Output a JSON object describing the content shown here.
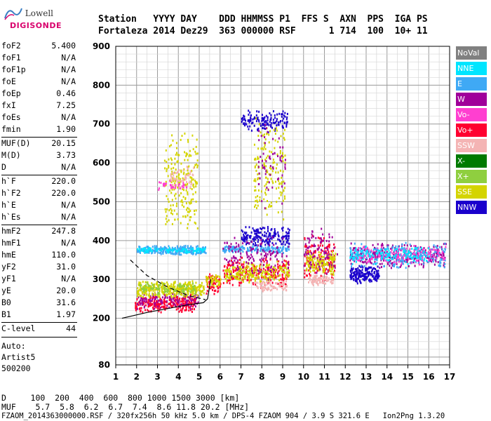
{
  "logo": {
    "line1": "Lowell",
    "line2": "DIGISONDE"
  },
  "header": {
    "labels": "Station   YYYY DAY    DDD HHMMSS P1  FFS S  AXN  PPS  IGA PS",
    "values": "Fortaleza 2014 Dez29  363 000000 RSF      1 714  100  10+ 11"
  },
  "params": [
    {
      "k": "foF2",
      "v": "5.400"
    },
    {
      "k": "foF1",
      "v": "N/A"
    },
    {
      "k": "foF1p",
      "v": "N/A"
    },
    {
      "k": "foE",
      "v": "N/A"
    },
    {
      "k": "foEp",
      "v": "0.46"
    },
    {
      "k": "fxI",
      "v": "7.25"
    },
    {
      "k": "foEs",
      "v": "N/A"
    },
    {
      "k": "fmin",
      "v": "1.90"
    },
    {
      "k": "MUF(D)",
      "v": "20.15"
    },
    {
      "k": "M(D)",
      "v": "3.73"
    },
    {
      "k": "D",
      "v": "N/A"
    },
    {
      "k": "h`F",
      "v": "220.0"
    },
    {
      "k": "h`F2",
      "v": "220.0"
    },
    {
      "k": "h`E",
      "v": "N/A"
    },
    {
      "k": "h`Es",
      "v": "N/A"
    },
    {
      "k": "hmF2",
      "v": "247.8"
    },
    {
      "k": "hmF1",
      "v": "N/A"
    },
    {
      "k": "hmE",
      "v": "110.0"
    },
    {
      "k": "yF2",
      "v": "31.0"
    },
    {
      "k": "yF1",
      "v": "N/A"
    },
    {
      "k": "yE",
      "v": "20.0"
    },
    {
      "k": "B0",
      "v": "31.6"
    },
    {
      "k": "B1",
      "v": "1.97"
    },
    {
      "k": "C-level",
      "v": "44"
    }
  ],
  "auto": [
    "Auto:",
    "Artist5",
    "500200"
  ],
  "footer": {
    "d_row": "D     100  200  400  600  800 1000 1500 3000 [km]",
    "muf_row": "MUF    5.7  5.8  6.2  6.7  7.4  8.6 11.8 20.2 [MHz]",
    "file_row": "FZAOM_2014363000000.RSF / 320fx256h 50 kHz 5.0 km / DPS-4 FZAOM 904 / 3.9 S 321.6 E   Ion2Png 1.3.20"
  },
  "legend": [
    {
      "label": "NoVal",
      "color": "#808080"
    },
    {
      "label": "NNE",
      "color": "#00e5ff"
    },
    {
      "label": "E",
      "color": "#3fa9f5"
    },
    {
      "label": "W",
      "color": "#a0009a"
    },
    {
      "label": "Vo-",
      "color": "#ff3fd0"
    },
    {
      "label": "Vo+",
      "color": "#ff0030"
    },
    {
      "label": "SSW",
      "color": "#f4b4b4"
    },
    {
      "label": "X-",
      "color": "#007a00"
    },
    {
      "label": "X+",
      "color": "#8fcf3f"
    },
    {
      "label": "SSE",
      "color": "#d4d400"
    },
    {
      "label": "NNW",
      "color": "#1a00cc"
    }
  ],
  "chart_data": {
    "type": "scatter",
    "xlim": [
      1,
      17
    ],
    "ylim": [
      80,
      900
    ],
    "xticks": [
      1,
      2,
      3,
      4,
      5,
      6,
      7,
      8,
      9,
      10,
      11,
      12,
      13,
      14,
      15,
      16,
      17
    ],
    "yticks": [
      80,
      200,
      300,
      400,
      500,
      600,
      700,
      800,
      900
    ],
    "grid": true,
    "clusters": [
      {
        "color": "#ff0030",
        "x": [
          1.9,
          4.8
        ],
        "y": [
          215,
          265
        ],
        "n": 260
      },
      {
        "color": "#a0009a",
        "x": [
          2.0,
          5.0
        ],
        "y": [
          225,
          270
        ],
        "n": 120
      },
      {
        "color": "#d4d400",
        "x": [
          2.0,
          5.2
        ],
        "y": [
          255,
          300
        ],
        "n": 340
      },
      {
        "color": "#8fcf3f",
        "x": [
          2.1,
          4.8
        ],
        "y": [
          260,
          295
        ],
        "n": 90
      },
      {
        "color": "#3fa9f5",
        "x": [
          2.0,
          5.3
        ],
        "y": [
          365,
          390
        ],
        "n": 260
      },
      {
        "color": "#00e5ff",
        "x": [
          2.0,
          5.3
        ],
        "y": [
          370,
          385
        ],
        "n": 90
      },
      {
        "color": "#d4d400",
        "x": [
          3.3,
          4.9
        ],
        "y": [
          420,
          690
        ],
        "n": 220
      },
      {
        "color": "#f4b4b4",
        "x": [
          3.6,
          4.7
        ],
        "y": [
          520,
          600
        ],
        "n": 60
      },
      {
        "color": "#ff3fd0",
        "x": [
          3.0,
          4.4
        ],
        "y": [
          530,
          560
        ],
        "n": 30
      },
      {
        "color": "#ff0030",
        "x": [
          5.3,
          6.0
        ],
        "y": [
          260,
          320
        ],
        "n": 60
      },
      {
        "color": "#d4d400",
        "x": [
          5.3,
          6.0
        ],
        "y": [
          280,
          320
        ],
        "n": 50
      },
      {
        "color": "#3fa9f5",
        "x": [
          6.1,
          9.3
        ],
        "y": [
          370,
          390
        ],
        "n": 170
      },
      {
        "color": "#1a00cc",
        "x": [
          7.0,
          9.3
        ],
        "y": [
          385,
          440
        ],
        "n": 180
      },
      {
        "color": "#ff0030",
        "x": [
          6.1,
          9.3
        ],
        "y": [
          280,
          360
        ],
        "n": 230
      },
      {
        "color": "#d4d400",
        "x": [
          6.2,
          9.3
        ],
        "y": [
          290,
          350
        ],
        "n": 220
      },
      {
        "color": "#a0009a",
        "x": [
          6.1,
          9.3
        ],
        "y": [
          300,
          420
        ],
        "n": 130
      },
      {
        "color": "#f4b4b4",
        "x": [
          7.6,
          9.2
        ],
        "y": [
          270,
          300
        ],
        "n": 80
      },
      {
        "color": "#1a00cc",
        "x": [
          7.0,
          9.2
        ],
        "y": [
          680,
          740
        ],
        "n": 140
      },
      {
        "color": "#d4d400",
        "x": [
          7.6,
          9.1
        ],
        "y": [
          450,
          720
        ],
        "n": 160
      },
      {
        "color": "#a0009a",
        "x": [
          7.8,
          9.1
        ],
        "y": [
          470,
          720
        ],
        "n": 60
      },
      {
        "color": "#ff0030",
        "x": [
          10.0,
          11.5
        ],
        "y": [
          290,
          420
        ],
        "n": 140
      },
      {
        "color": "#d4d400",
        "x": [
          10.1,
          11.5
        ],
        "y": [
          310,
          380
        ],
        "n": 140
      },
      {
        "color": "#f4b4b4",
        "x": [
          10.2,
          11.4
        ],
        "y": [
          285,
          315
        ],
        "n": 80
      },
      {
        "color": "#a0009a",
        "x": [
          10.0,
          11.6
        ],
        "y": [
          300,
          450
        ],
        "n": 80
      },
      {
        "color": "#1a00cc",
        "x": [
          12.2,
          13.6
        ],
        "y": [
          290,
          340
        ],
        "n": 180
      },
      {
        "color": "#a0009a",
        "x": [
          12.2,
          16.8
        ],
        "y": [
          330,
          400
        ],
        "n": 300
      },
      {
        "color": "#3fa9f5",
        "x": [
          12.2,
          16.8
        ],
        "y": [
          330,
          400
        ],
        "n": 220
      },
      {
        "color": "#ff3fd0",
        "x": [
          12.5,
          16.8
        ],
        "y": [
          340,
          390
        ],
        "n": 150
      },
      {
        "color": "#00e5ff",
        "x": [
          12.2,
          16.0
        ],
        "y": [
          340,
          390
        ],
        "n": 120
      }
    ],
    "solid_profile": [
      [
        1.3,
        200
      ],
      [
        2.5,
        215
      ],
      [
        3.5,
        225
      ],
      [
        4.5,
        235
      ],
      [
        5.2,
        240
      ],
      [
        5.4,
        250
      ],
      [
        5.55,
        300
      ]
    ],
    "dashed_profile": [
      [
        1.7,
        350
      ],
      [
        2.5,
        310
      ],
      [
        3.5,
        280
      ],
      [
        4.5,
        258
      ],
      [
        5.3,
        248
      ]
    ],
    "solid_color": "#000000"
  }
}
